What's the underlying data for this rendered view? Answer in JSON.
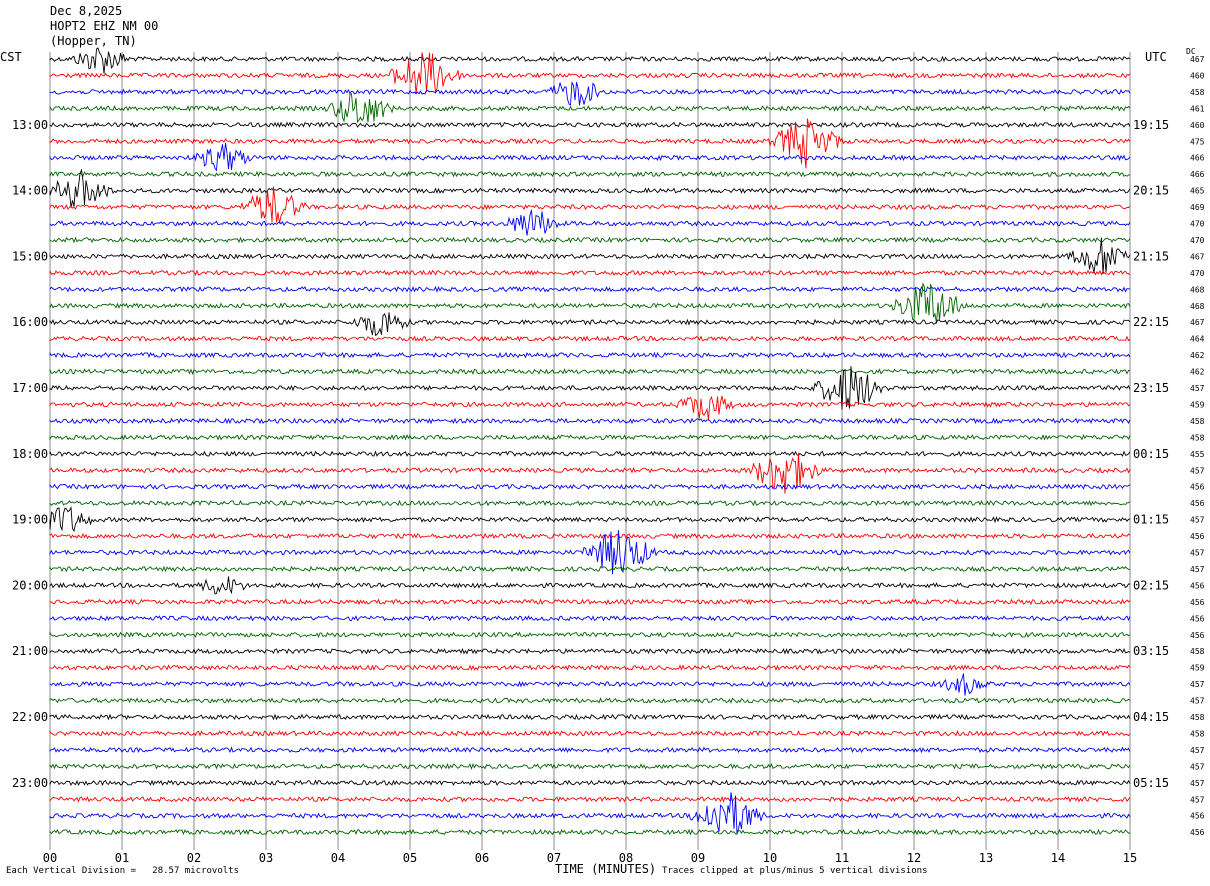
{
  "header": {
    "date": "Dec 8,2025",
    "station": "HOPT2 EHZ NM 00",
    "location": "(Hopper, TN)"
  },
  "left_timezone": "CST",
  "right_timezone": "UTC",
  "dc_label": "DC",
  "footer": {
    "division_note": "Each Vertical Division =   28.57 microvolts",
    "xlabel": "TIME (MINUTES)",
    "clip_note": "Traces clipped at plus/minus 5 vertical divisions"
  },
  "chart_data": {
    "type": "seismogram",
    "xlabel": "TIME (MINUTES)",
    "x_range": [
      0,
      15
    ],
    "x_ticks": [
      "00",
      "01",
      "02",
      "03",
      "04",
      "05",
      "06",
      "07",
      "08",
      "09",
      "10",
      "11",
      "12",
      "13",
      "14",
      "15"
    ],
    "trace_colors": [
      "#000000",
      "#ff0000",
      "#0000ff",
      "#006400"
    ],
    "minutes_per_trace": 15,
    "left_hour_labels": [
      "13:00",
      "14:00",
      "15:00",
      "16:00",
      "17:00",
      "18:00",
      "19:00",
      "20:00",
      "21:00",
      "22:00",
      "23:00"
    ],
    "right_hour_labels": [
      "19:15",
      "20:15",
      "21:15",
      "22:15",
      "23:15",
      "00:15",
      "01:15",
      "02:15",
      "03:15",
      "04:15",
      "05:15"
    ],
    "dc_offsets": [
      467,
      460,
      458,
      461,
      460,
      475,
      466,
      466,
      465,
      469,
      470,
      470,
      467,
      470,
      468,
      468,
      467,
      464,
      462,
      462,
      457,
      459,
      458,
      458,
      455,
      457,
      456,
      456,
      457,
      456,
      457,
      457,
      456,
      456,
      456,
      456,
      458,
      459,
      457,
      457,
      458,
      458,
      457,
      457,
      457,
      457,
      456,
      456
    ],
    "events": [
      {
        "trace": 0,
        "minute": 0.7,
        "strength": 3
      },
      {
        "trace": 1,
        "minute": 5.2,
        "strength": 5
      },
      {
        "trace": 2,
        "minute": 7.3,
        "strength": 3
      },
      {
        "trace": 3,
        "minute": 4.3,
        "strength": 4
      },
      {
        "trace": 5,
        "minute": 10.5,
        "strength": 5
      },
      {
        "trace": 6,
        "minute": 2.4,
        "strength": 3
      },
      {
        "trace": 8,
        "minute": 0.4,
        "strength": 4
      },
      {
        "trace": 9,
        "minute": 3.1,
        "strength": 4
      },
      {
        "trace": 10,
        "minute": 6.7,
        "strength": 3
      },
      {
        "trace": 12,
        "minute": 14.6,
        "strength": 4
      },
      {
        "trace": 15,
        "minute": 12.2,
        "strength": 5
      },
      {
        "trace": 16,
        "minute": 4.6,
        "strength": 3
      },
      {
        "trace": 20,
        "minute": 11.1,
        "strength": 5
      },
      {
        "trace": 21,
        "minute": 9.1,
        "strength": 3
      },
      {
        "trace": 25,
        "minute": 10.2,
        "strength": 5
      },
      {
        "trace": 28,
        "minute": 0.2,
        "strength": 3
      },
      {
        "trace": 30,
        "minute": 7.9,
        "strength": 5
      },
      {
        "trace": 32,
        "minute": 2.4,
        "strength": 2
      },
      {
        "trace": 38,
        "minute": 12.7,
        "strength": 2
      },
      {
        "trace": 46,
        "minute": 9.4,
        "strength": 5
      }
    ]
  }
}
